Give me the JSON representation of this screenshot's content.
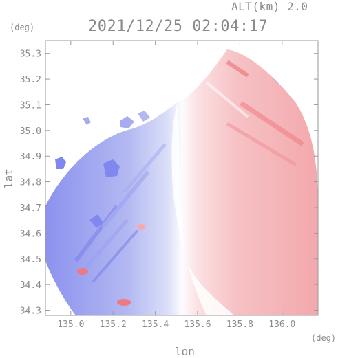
{
  "header": {
    "altitude": "ALT(km) 2.0",
    "timestamp": "2021/12/25 02:04:17"
  },
  "axes": {
    "y_unit": "(deg)",
    "x_unit": "(deg)",
    "ylabel": "lat",
    "xlabel": "lon"
  },
  "chart_data": {
    "type": "heatmap",
    "xlabel": "lon",
    "ylabel": "lat",
    "xlim": [
      134.88,
      136.17
    ],
    "ylim": [
      34.28,
      35.35
    ],
    "x_ticks": [
      135.0,
      135.2,
      135.4,
      135.6,
      135.8,
      136.0
    ],
    "x_tick_labels": [
      "135.0",
      "135.2",
      "135.4",
      "135.6",
      "135.8",
      "136.0"
    ],
    "y_ticks": [
      34.3,
      34.4,
      34.5,
      34.6,
      34.7,
      34.8,
      34.9,
      35.0,
      35.1,
      35.2,
      35.3
    ],
    "y_tick_labels": [
      "34.3",
      "34.4",
      "34.5",
      "34.6",
      "34.7",
      "34.8",
      "34.9",
      "35.0",
      "35.1",
      "35.2",
      "35.3"
    ],
    "colors": {
      "approaching": "#8088f0",
      "receding": "#f08088",
      "near_zero": "#ffffff"
    }
  }
}
